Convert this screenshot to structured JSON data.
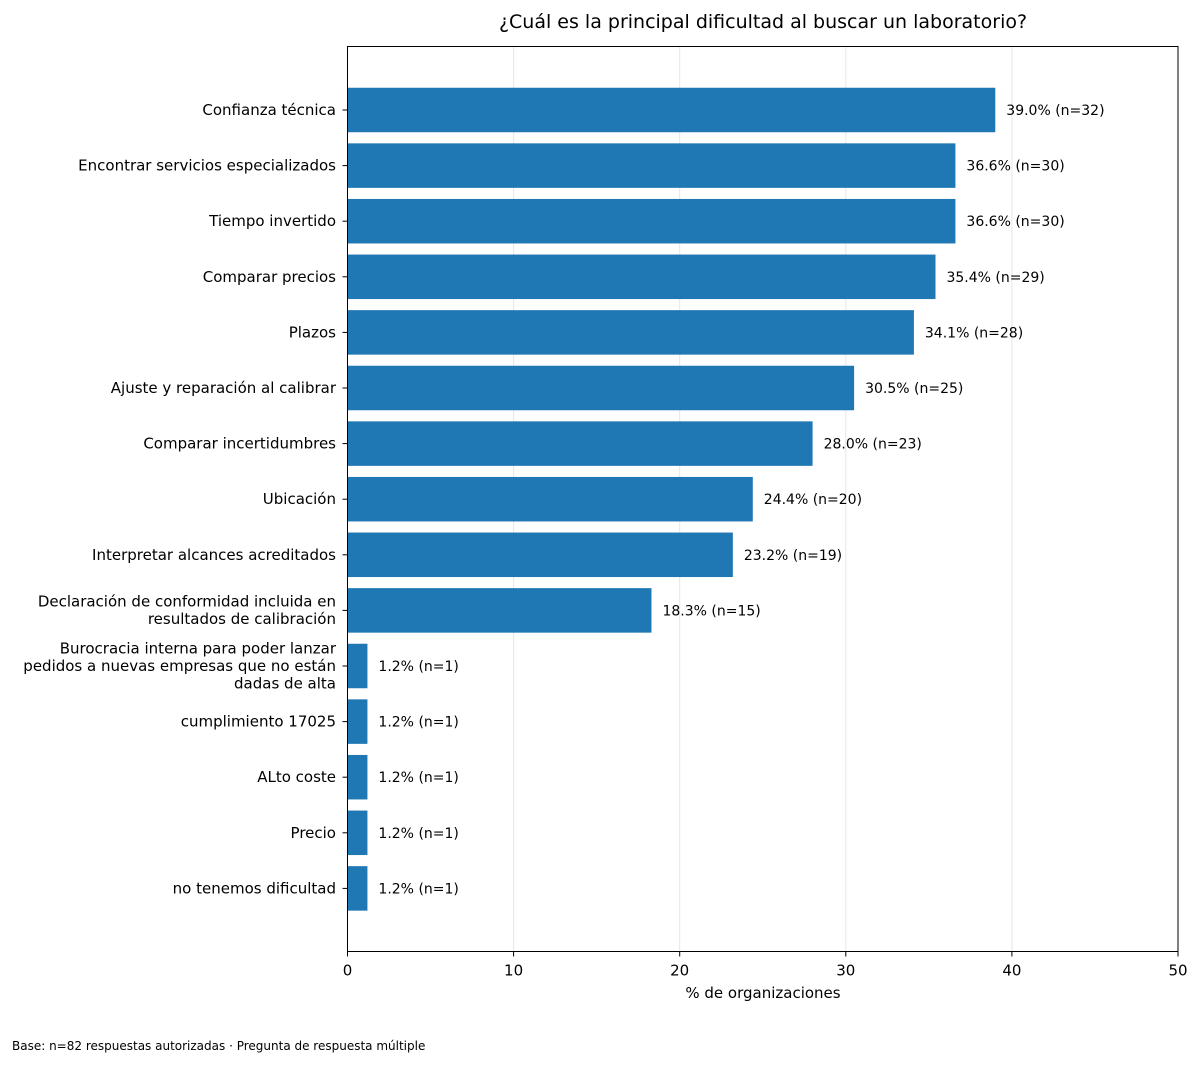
{
  "chart_data": {
    "type": "bar",
    "orientation": "horizontal",
    "title": "¿Cuál es la principal dificultad al buscar un laboratorio?",
    "xlabel": "% de organizaciones",
    "ylabel": "",
    "xlim": [
      0,
      50
    ],
    "xticks": [
      "0",
      "10",
      "20",
      "30",
      "40",
      "50"
    ],
    "grid": "vertical",
    "bar_color": "#1f77b4",
    "categories": [
      [
        "Confianza técnica"
      ],
      [
        "Encontrar servicios especializados"
      ],
      [
        "Tiempo invertido"
      ],
      [
        "Comparar precios"
      ],
      [
        "Plazos"
      ],
      [
        "Ajuste y reparación al calibrar"
      ],
      [
        "Comparar incertidumbres"
      ],
      [
        "Ubicación"
      ],
      [
        "Interpretar alcances acreditados"
      ],
      [
        "Declaración de conformidad incluida en",
        "resultados de calibración"
      ],
      [
        "Burocracia interna para poder lanzar",
        "pedidos a nuevas empresas que no están",
        "dadas de alta"
      ],
      [
        "cumplimiento 17025"
      ],
      [
        "ALto coste"
      ],
      [
        "Precio"
      ],
      [
        "no tenemos dificultad"
      ]
    ],
    "values": [
      39.0,
      36.6,
      36.6,
      35.4,
      34.1,
      30.5,
      28.0,
      24.4,
      23.2,
      18.3,
      1.2,
      1.2,
      1.2,
      1.2,
      1.2
    ],
    "data_labels": [
      "39.0% (n=32)",
      "36.6% (n=30)",
      "36.6% (n=30)",
      "35.4% (n=29)",
      "34.1% (n=28)",
      "30.5% (n=25)",
      "28.0% (n=23)",
      "24.4% (n=20)",
      "23.2% (n=19)",
      "18.3% (n=15)",
      "1.2% (n=1)",
      "1.2% (n=1)",
      "1.2% (n=1)",
      "1.2% (n=1)",
      "1.2% (n=1)"
    ]
  },
  "footnote": "Base: n=82 respuestas autorizadas · Pregunta de respuesta múltiple"
}
